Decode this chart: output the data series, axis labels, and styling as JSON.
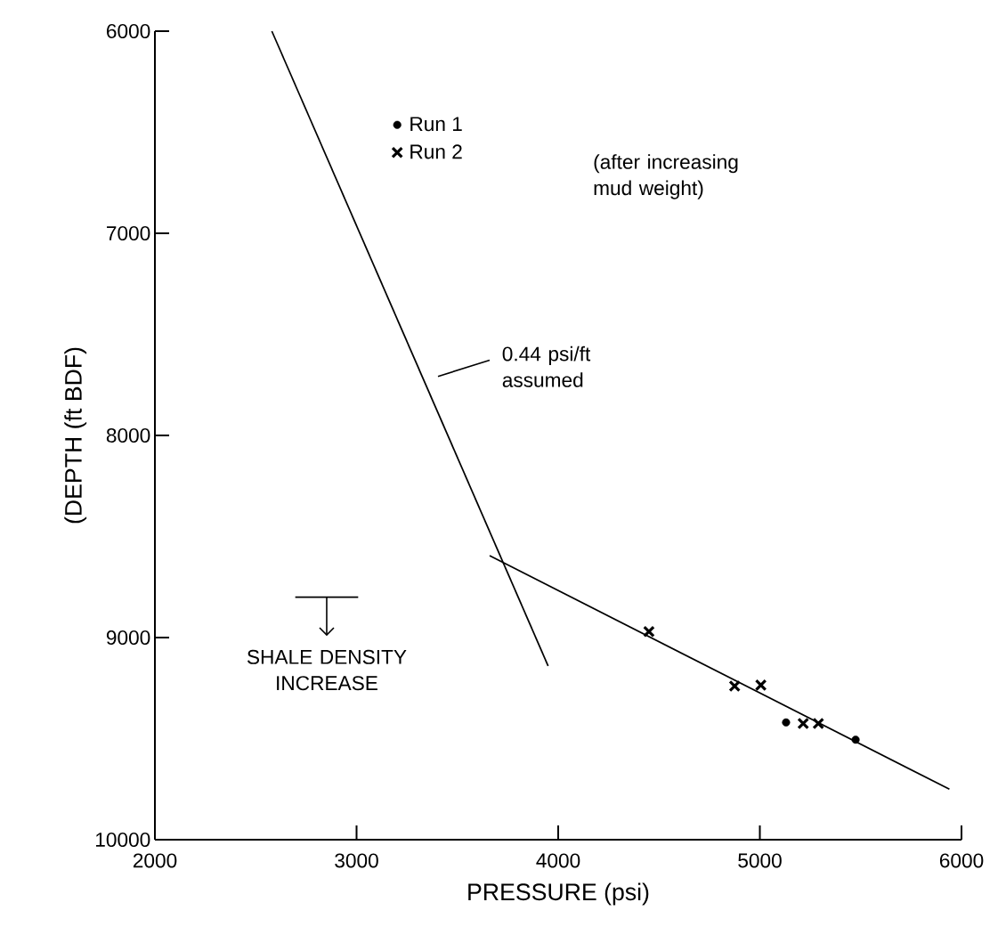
{
  "chart_data": {
    "type": "scatter",
    "xlabel": "PRESSURE (psi)",
    "ylabel": "(DEPTH (ft BDF)",
    "xlim": [
      2000,
      6000
    ],
    "ylim": [
      10000,
      6000
    ],
    "xticks": [
      2000,
      3000,
      4000,
      5000,
      6000
    ],
    "yticks": [
      6000,
      7000,
      8000,
      9000,
      10000
    ],
    "grid": false,
    "legend": "top",
    "series": [
      {
        "name": "Run 1",
        "marker": "circle",
        "color": "#000000",
        "x": [
          5130,
          5475
        ],
        "values": [
          9420,
          9505
        ]
      },
      {
        "name": "Run 2",
        "marker": "cross",
        "color": "#000000",
        "x": [
          4450,
          4875,
          5005,
          5215,
          5290
        ],
        "values": [
          8970,
          9240,
          9235,
          9425,
          9425
        ]
      },
      {
        "type": "line",
        "marker": "none",
        "line_style": "solid",
        "color": "#000000",
        "x": [
          2580,
          3950
        ],
        "values": [
          6000,
          9140
        ]
      },
      {
        "type": "line",
        "marker": "none",
        "line_style": "solid",
        "color": "#000000",
        "x": [
          3660,
          5940
        ],
        "values": [
          8595,
          9750
        ]
      }
    ],
    "annotations": [
      "(after increasing mud weight)",
      "0.44 psi/ft assumed",
      "SHALE DENSITY INCREASE"
    ]
  }
}
